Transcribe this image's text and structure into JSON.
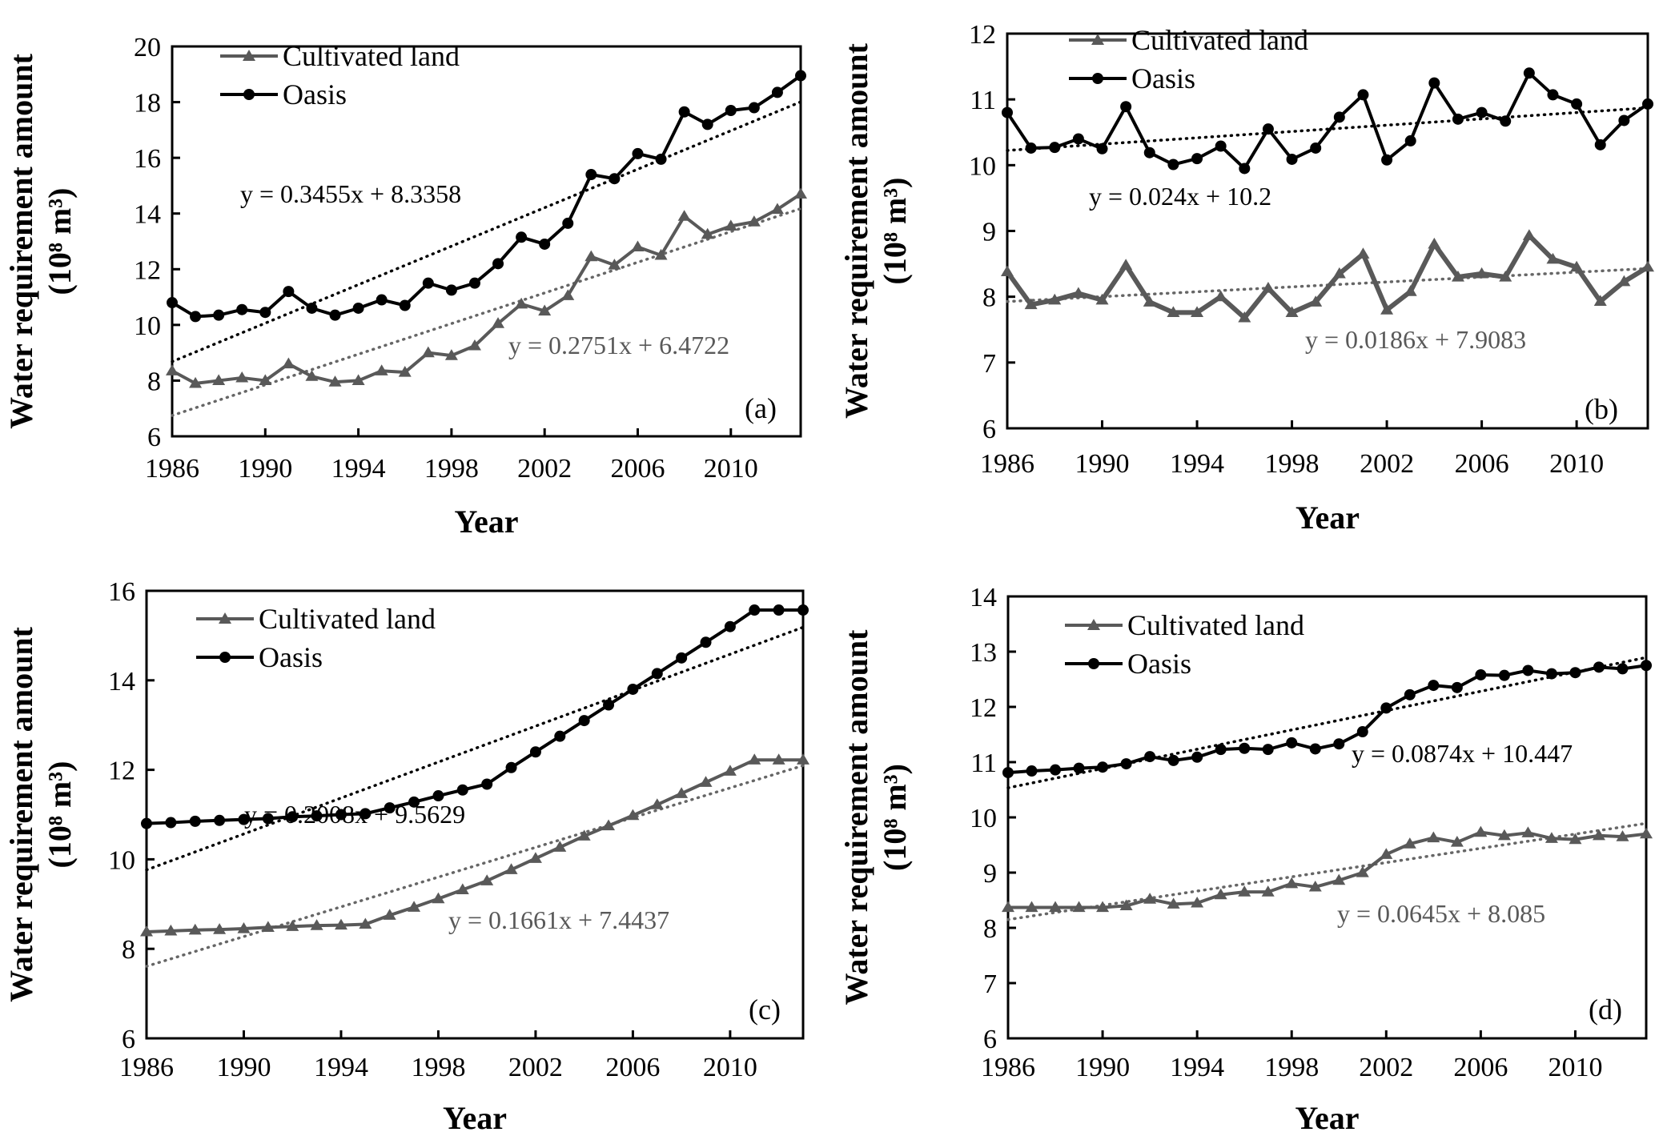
{
  "figure": {
    "panels": [
      "a",
      "b",
      "c",
      "d"
    ]
  },
  "chart_data": [
    {
      "type": "line",
      "panel_label": "(a)",
      "xlabel": "Year",
      "ylabel": "Water requirement amount",
      "ylabel_unit": "(10⁸ m³)",
      "x": [
        1986,
        1987,
        1988,
        1989,
        1990,
        1991,
        1992,
        1993,
        1994,
        1995,
        1996,
        1997,
        1998,
        1999,
        2000,
        2001,
        2002,
        2003,
        2004,
        2005,
        2006,
        2007,
        2008,
        2009,
        2010,
        2011,
        2012,
        2013
      ],
      "xticks": [
        "1986",
        "1990",
        "1994",
        "1998",
        "2002",
        "2006",
        "2010"
      ],
      "ylim": [
        6,
        20
      ],
      "yticks": [
        6,
        8,
        10,
        12,
        14,
        16,
        18,
        20
      ],
      "legend": [
        "Cultivated land",
        "Oasis"
      ],
      "legend_position": "top-left",
      "series": [
        {
          "name": "Cultivated land",
          "marker": "triangle",
          "color": "#595959",
          "values": [
            8.35,
            7.9,
            8.0,
            8.1,
            8.0,
            8.6,
            8.15,
            7.95,
            8.0,
            8.35,
            8.3,
            9.0,
            8.9,
            9.25,
            10.05,
            10.75,
            10.5,
            11.05,
            12.45,
            12.15,
            12.8,
            12.5,
            13.9,
            13.25,
            13.55,
            13.7,
            14.15,
            14.7
          ],
          "trend": {
            "slope": 0.2751,
            "intercept": 6.4722,
            "label": "y = 0.2751x + 6.4722"
          }
        },
        {
          "name": "Oasis",
          "marker": "circle",
          "color": "#000000",
          "values": [
            10.8,
            10.3,
            10.35,
            10.55,
            10.45,
            11.2,
            10.6,
            10.35,
            10.6,
            10.9,
            10.7,
            11.5,
            11.25,
            11.5,
            12.2,
            13.15,
            12.9,
            13.65,
            15.4,
            15.25,
            16.15,
            15.95,
            17.65,
            17.2,
            17.7,
            17.8,
            18.35,
            18.95
          ],
          "trend": {
            "slope": 0.3455,
            "intercept": 8.3358,
            "label": "y = 0.3455x + 8.3358"
          }
        }
      ]
    },
    {
      "type": "line",
      "panel_label": "(b)",
      "xlabel": "Year",
      "ylabel": "Water requirement amount",
      "ylabel_unit": "(10⁸ m³)",
      "x": [
        1986,
        1987,
        1988,
        1989,
        1990,
        1991,
        1992,
        1993,
        1994,
        1995,
        1996,
        1997,
        1998,
        1999,
        2000,
        2001,
        2002,
        2003,
        2004,
        2005,
        2006,
        2007,
        2008,
        2009,
        2010,
        2011,
        2012,
        2013
      ],
      "xticks": [
        "1986",
        "1990",
        "1994",
        "1998",
        "2002",
        "2006",
        "2010"
      ],
      "ylim": [
        6,
        12
      ],
      "yticks": [
        6,
        7,
        8,
        9,
        10,
        11,
        12
      ],
      "legend": [
        "Cultivated land",
        "Oasis"
      ],
      "legend_position": "top-left",
      "series": [
        {
          "name": "Cultivated land",
          "marker": "triangle",
          "color": "#595959",
          "values": [
            8.38,
            7.88,
            7.95,
            8.05,
            7.95,
            8.48,
            7.92,
            7.76,
            7.76,
            8.0,
            7.68,
            8.13,
            7.76,
            7.92,
            8.35,
            8.65,
            7.8,
            8.08,
            8.8,
            8.3,
            8.35,
            8.3,
            8.93,
            8.57,
            8.45,
            7.93,
            8.23,
            8.45
          ],
          "trend": {
            "slope": 0.0186,
            "intercept": 7.9083,
            "label": "y = 0.0186x + 7.9083"
          }
        },
        {
          "name": "Oasis",
          "marker": "circle",
          "color": "#000000",
          "values": [
            10.8,
            10.26,
            10.27,
            10.4,
            10.25,
            10.89,
            10.19,
            10.01,
            10.1,
            10.29,
            9.95,
            10.55,
            10.09,
            10.26,
            10.73,
            11.07,
            10.08,
            10.37,
            11.25,
            10.7,
            10.8,
            10.67,
            11.4,
            11.07,
            10.93,
            10.31,
            10.68,
            10.93
          ],
          "trend": {
            "slope": 0.024,
            "intercept": 10.2,
            "label": "y = 0.024x + 10.2"
          }
        }
      ]
    },
    {
      "type": "line",
      "panel_label": "(c)",
      "xlabel": "Year",
      "ylabel": "Water requirement amount",
      "ylabel_unit": "(10⁸ m³)",
      "x": [
        1986,
        1987,
        1988,
        1989,
        1990,
        1991,
        1992,
        1993,
        1994,
        1995,
        1996,
        1997,
        1998,
        1999,
        2000,
        2001,
        2002,
        2003,
        2004,
        2005,
        2006,
        2007,
        2008,
        2009,
        2010,
        2011,
        2012,
        2013
      ],
      "xticks": [
        "1986",
        "1990",
        "1994",
        "1998",
        "2002",
        "2006",
        "2010"
      ],
      "ylim": [
        6,
        16
      ],
      "yticks": [
        6,
        8,
        10,
        12,
        14,
        16
      ],
      "legend": [
        "Cultivated land",
        "Oasis"
      ],
      "legend_position": "top-left",
      "series": [
        {
          "name": "Cultivated land",
          "marker": "triangle",
          "color": "#595959",
          "values": [
            8.38,
            8.4,
            8.42,
            8.43,
            8.45,
            8.48,
            8.5,
            8.52,
            8.53,
            8.55,
            8.75,
            8.93,
            9.12,
            9.32,
            9.52,
            9.77,
            10.02,
            10.27,
            10.52,
            10.75,
            10.98,
            11.22,
            11.47,
            11.72,
            11.97,
            12.22,
            12.22,
            12.22
          ],
          "trend": {
            "slope": 0.1661,
            "intercept": 7.4437,
            "label": "y = 0.1661x + 7.4437"
          }
        },
        {
          "name": "Oasis",
          "marker": "circle",
          "color": "#000000",
          "values": [
            10.8,
            10.82,
            10.85,
            10.87,
            10.89,
            10.91,
            10.95,
            10.97,
            11.0,
            11.02,
            11.15,
            11.28,
            11.42,
            11.55,
            11.68,
            12.05,
            12.4,
            12.75,
            13.1,
            13.45,
            13.8,
            14.15,
            14.5,
            14.85,
            15.2,
            15.57,
            15.57,
            15.57
          ],
          "trend": {
            "slope": 0.2008,
            "intercept": 9.5629,
            "label": "y = 0.2008x + 9.5629"
          }
        }
      ]
    },
    {
      "type": "line",
      "panel_label": "(d)",
      "xlabel": "Year",
      "ylabel": "Water requirement amount",
      "ylabel_unit": "(10⁸ m³)",
      "x": [
        1986,
        1987,
        1988,
        1989,
        1990,
        1991,
        1992,
        1993,
        1994,
        1995,
        1996,
        1997,
        1998,
        1999,
        2000,
        2001,
        2002,
        2003,
        2004,
        2005,
        2006,
        2007,
        2008,
        2009,
        2010,
        2011,
        2012,
        2013
      ],
      "xticks": [
        "1986",
        "1990",
        "1994",
        "1998",
        "2002",
        "2006",
        "2010"
      ],
      "ylim": [
        6,
        14
      ],
      "yticks": [
        6,
        7,
        8,
        9,
        10,
        11,
        12,
        13,
        14
      ],
      "legend": [
        "Cultivated land",
        "Oasis"
      ],
      "legend_position": "top-left",
      "series": [
        {
          "name": "Cultivated land",
          "marker": "triangle",
          "color": "#595959",
          "values": [
            8.37,
            8.37,
            8.37,
            8.37,
            8.37,
            8.4,
            8.52,
            8.43,
            8.45,
            8.6,
            8.65,
            8.65,
            8.8,
            8.74,
            8.86,
            9.0,
            9.33,
            9.52,
            9.63,
            9.55,
            9.73,
            9.67,
            9.72,
            9.62,
            9.6,
            9.67,
            9.65,
            9.7
          ],
          "trend": {
            "slope": 0.0645,
            "intercept": 8.085,
            "label": "y = 0.0645x + 8.085"
          }
        },
        {
          "name": "Oasis",
          "marker": "circle",
          "color": "#000000",
          "values": [
            10.81,
            10.84,
            10.86,
            10.89,
            10.91,
            10.97,
            11.1,
            11.03,
            11.09,
            11.23,
            11.25,
            11.23,
            11.35,
            11.24,
            11.33,
            11.55,
            11.98,
            12.22,
            12.39,
            12.35,
            12.58,
            12.57,
            12.66,
            12.6,
            12.62,
            12.72,
            12.69,
            12.75
          ],
          "trend": {
            "slope": 0.0874,
            "intercept": 10.447,
            "label": "y = 0.0874x + 10.447"
          }
        }
      ]
    }
  ]
}
